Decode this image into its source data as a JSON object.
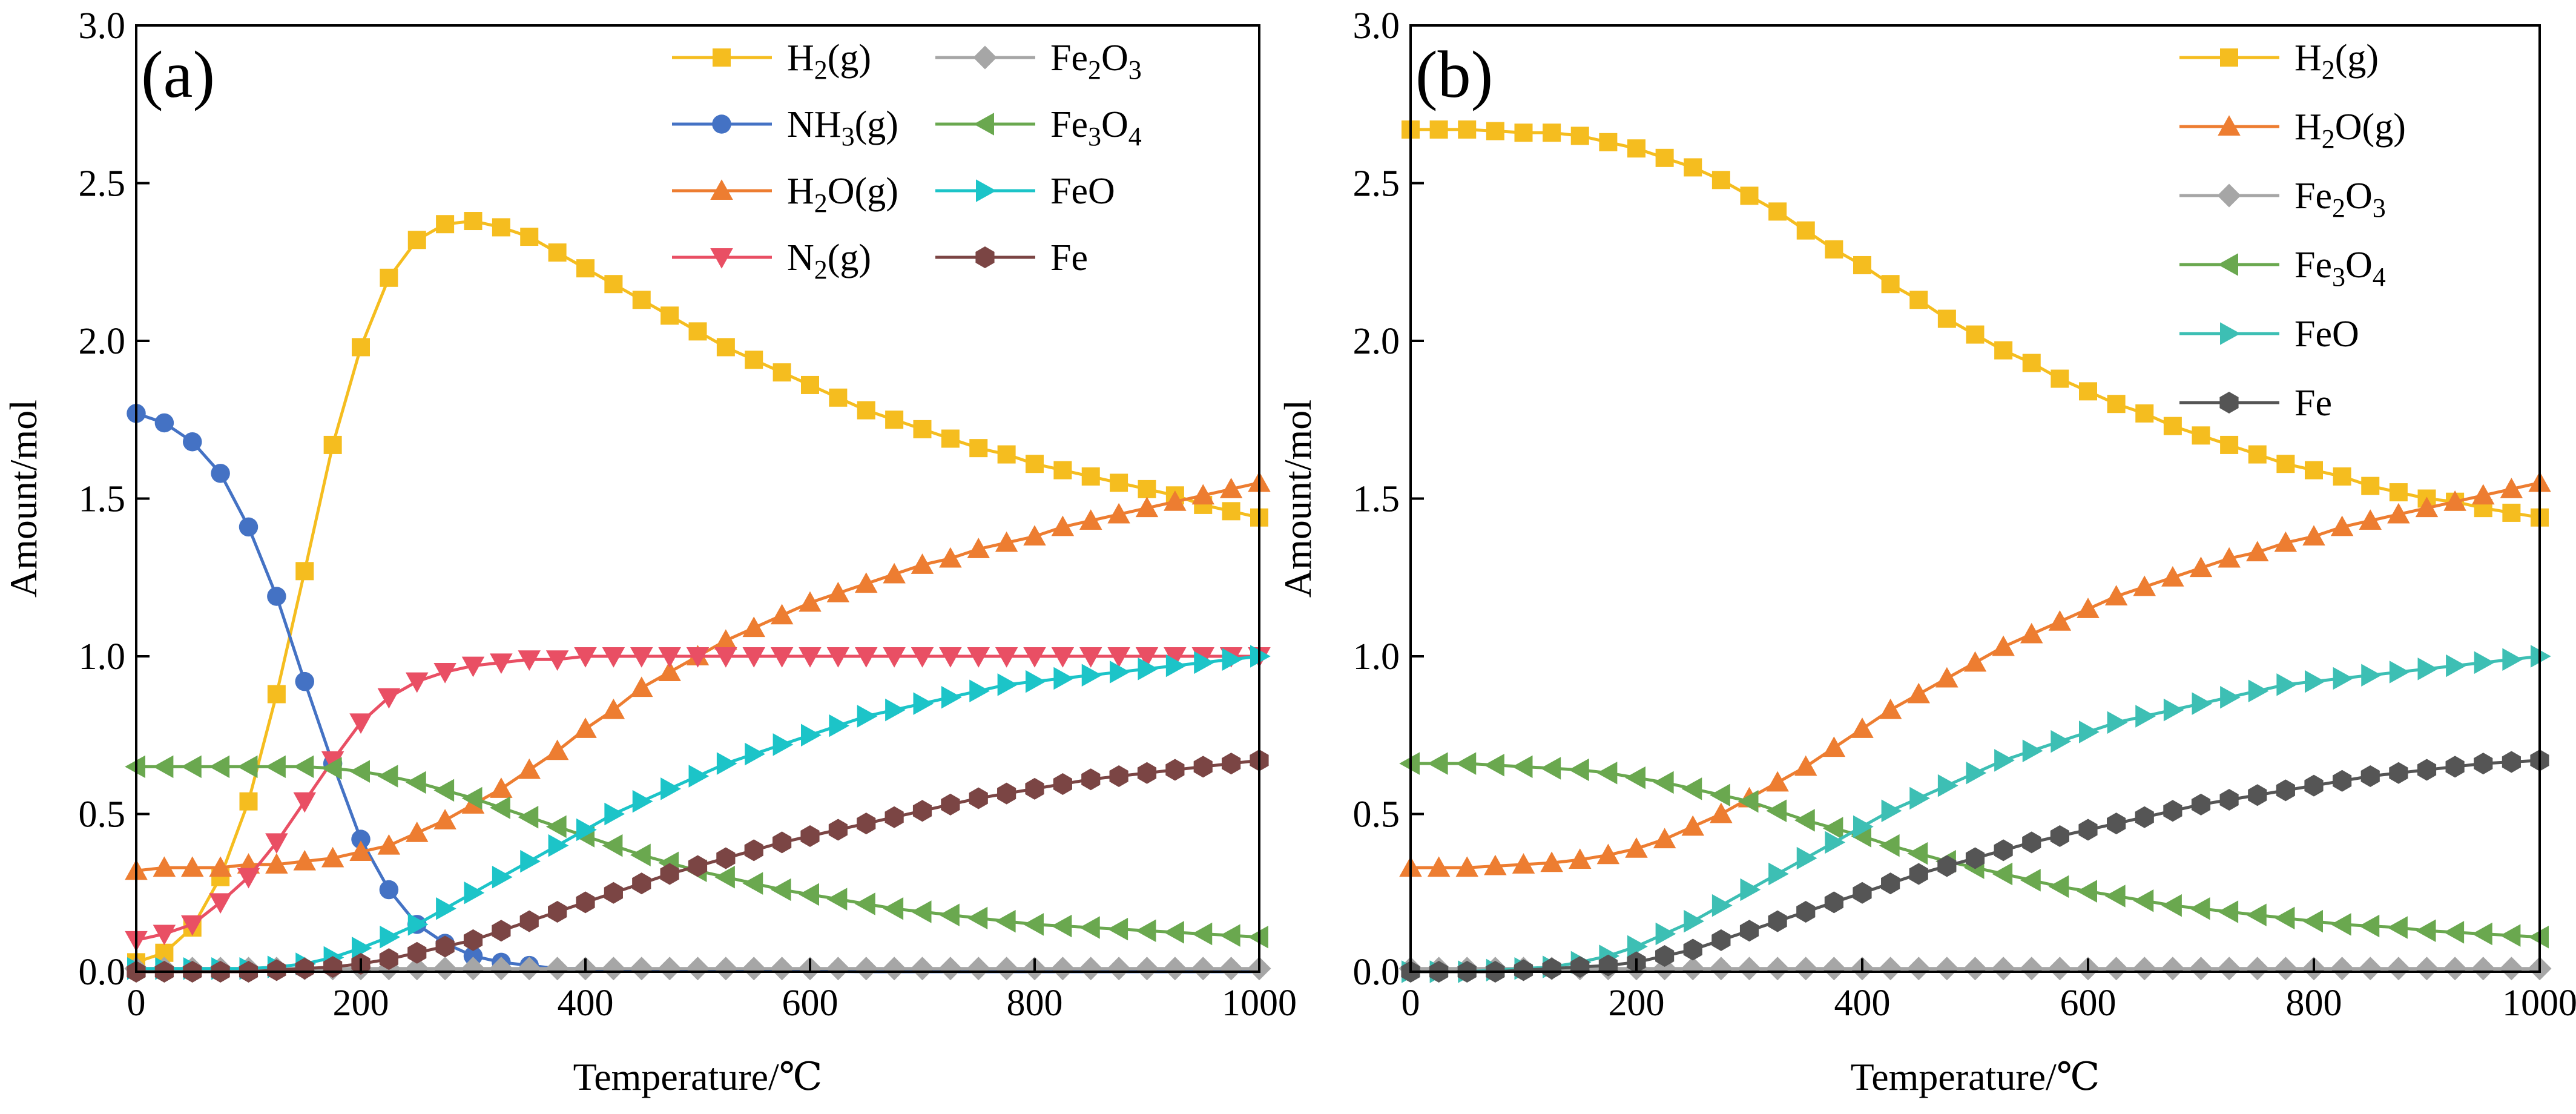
{
  "chart_data": [
    {
      "type": "line",
      "panel_label": "(a)",
      "xlabel": "Temperature/℃",
      "ylabel": "Amount/mol",
      "xlim": [
        0,
        1000
      ],
      "ylim": [
        0,
        3.0
      ],
      "xticks": [
        "0",
        "200",
        "400",
        "600",
        "800",
        "1000"
      ],
      "yticks": [
        "0.0",
        "0.5",
        "1.0",
        "1.5",
        "2.0",
        "2.5",
        "3.0"
      ],
      "grid": false,
      "legend_position": "top-right",
      "legend_columns": 2,
      "x": [
        0,
        25,
        50,
        75,
        100,
        125,
        150,
        175,
        200,
        225,
        250,
        275,
        300,
        325,
        350,
        375,
        400,
        425,
        450,
        475,
        500,
        525,
        550,
        575,
        600,
        625,
        650,
        675,
        700,
        725,
        750,
        775,
        800,
        825,
        850,
        875,
        900,
        925,
        950,
        975,
        1000
      ],
      "series": [
        {
          "name": "H2(g)",
          "legend_main": "H",
          "legend_sub": "2",
          "legend_tail": "(g)",
          "color": "#F5BD1F",
          "marker": "square",
          "values": [
            0.03,
            0.06,
            0.14,
            0.3,
            0.54,
            0.88,
            1.27,
            1.67,
            1.98,
            2.2,
            2.32,
            2.37,
            2.38,
            2.36,
            2.33,
            2.28,
            2.23,
            2.18,
            2.13,
            2.08,
            2.03,
            1.98,
            1.94,
            1.9,
            1.86,
            1.82,
            1.78,
            1.75,
            1.72,
            1.69,
            1.66,
            1.64,
            1.61,
            1.59,
            1.57,
            1.55,
            1.53,
            1.51,
            1.48,
            1.46,
            1.44
          ]
        },
        {
          "name": "NH3(g)",
          "legend_main": "NH",
          "legend_sub": "3",
          "legend_tail": "(g)",
          "color": "#4472C4",
          "marker": "circle",
          "marker_range": [
            0,
            14
          ],
          "values": [
            1.77,
            1.74,
            1.68,
            1.58,
            1.41,
            1.19,
            0.92,
            0.66,
            0.42,
            0.26,
            0.15,
            0.09,
            0.05,
            0.03,
            0.02,
            0.01,
            0.01,
            0.005,
            0.004,
            0.003,
            0.002,
            0.002,
            0.001,
            0.001,
            0.001,
            0.001,
            0,
            0,
            0,
            0,
            0,
            0,
            0,
            0,
            0,
            0,
            0,
            0,
            0,
            0,
            0
          ]
        },
        {
          "name": "H2O(g)",
          "legend_main": "H",
          "legend_sub": "2",
          "legend_tail": "O(g)",
          "color": "#ED7D31",
          "marker": "triangle-up",
          "values": [
            0.32,
            0.33,
            0.33,
            0.33,
            0.34,
            0.34,
            0.35,
            0.36,
            0.38,
            0.4,
            0.44,
            0.48,
            0.53,
            0.58,
            0.64,
            0.7,
            0.77,
            0.83,
            0.9,
            0.95,
            1.0,
            1.05,
            1.09,
            1.13,
            1.17,
            1.2,
            1.23,
            1.26,
            1.29,
            1.31,
            1.34,
            1.36,
            1.38,
            1.41,
            1.43,
            1.45,
            1.47,
            1.49,
            1.51,
            1.53,
            1.55
          ]
        },
        {
          "name": "N2(g)",
          "legend_main": "N",
          "legend_sub": "2",
          "legend_tail": "(g)",
          "color": "#E94F64",
          "marker": "triangle-down",
          "values": [
            0.1,
            0.12,
            0.15,
            0.22,
            0.3,
            0.41,
            0.54,
            0.67,
            0.79,
            0.87,
            0.92,
            0.95,
            0.97,
            0.98,
            0.99,
            0.99,
            1.0,
            1.0,
            1.0,
            1.0,
            1.0,
            1.0,
            1.0,
            1.0,
            1.0,
            1.0,
            1.0,
            1.0,
            1.0,
            1.0,
            1.0,
            1.0,
            1.0,
            1.0,
            1.0,
            1.0,
            1.0,
            1.0,
            1.0,
            1.0,
            1.0
          ]
        },
        {
          "name": "Fe2O3",
          "legend_main": "Fe",
          "legend_sub": "2",
          "legend_tail": "O",
          "legend_sub2": "3",
          "color": "#A6A6A6",
          "marker": "diamond",
          "values": [
            0.01,
            0.01,
            0.01,
            0.01,
            0.01,
            0.01,
            0.01,
            0.01,
            0.01,
            0.01,
            0.01,
            0.01,
            0.01,
            0.01,
            0.01,
            0.01,
            0.01,
            0.01,
            0.01,
            0.01,
            0.01,
            0.01,
            0.01,
            0.01,
            0.01,
            0.01,
            0.01,
            0.01,
            0.01,
            0.01,
            0.01,
            0.01,
            0.01,
            0.01,
            0.01,
            0.01,
            0.01,
            0.01,
            0.01,
            0.01,
            0.01
          ]
        },
        {
          "name": "Fe3O4",
          "legend_main": "Fe",
          "legend_sub": "3",
          "legend_tail": "O",
          "legend_sub2": "4",
          "color": "#6AA84F",
          "marker": "triangle-left",
          "values": [
            0.65,
            0.65,
            0.65,
            0.65,
            0.65,
            0.65,
            0.65,
            0.645,
            0.635,
            0.62,
            0.6,
            0.575,
            0.55,
            0.52,
            0.49,
            0.46,
            0.43,
            0.4,
            0.37,
            0.345,
            0.32,
            0.3,
            0.28,
            0.26,
            0.245,
            0.23,
            0.215,
            0.2,
            0.19,
            0.18,
            0.17,
            0.16,
            0.15,
            0.145,
            0.14,
            0.135,
            0.13,
            0.125,
            0.12,
            0.115,
            0.11
          ]
        },
        {
          "name": "FeO",
          "legend_main": "FeO",
          "color": "#1CC4C8",
          "marker": "triangle-right",
          "values": [
            0.01,
            0.01,
            0.01,
            0.01,
            0.01,
            0.015,
            0.025,
            0.045,
            0.075,
            0.11,
            0.15,
            0.2,
            0.25,
            0.3,
            0.35,
            0.4,
            0.45,
            0.5,
            0.54,
            0.58,
            0.62,
            0.66,
            0.69,
            0.72,
            0.75,
            0.78,
            0.81,
            0.83,
            0.85,
            0.87,
            0.89,
            0.91,
            0.92,
            0.93,
            0.94,
            0.95,
            0.96,
            0.97,
            0.98,
            0.99,
            1.0
          ]
        },
        {
          "name": "Fe",
          "legend_main": "Fe",
          "color": "#7B4544",
          "marker": "hexagon",
          "values": [
            0.0,
            0.0,
            0.0,
            0.0,
            0.0,
            0.005,
            0.01,
            0.015,
            0.025,
            0.04,
            0.06,
            0.08,
            0.1,
            0.13,
            0.16,
            0.19,
            0.22,
            0.25,
            0.28,
            0.31,
            0.335,
            0.36,
            0.385,
            0.41,
            0.43,
            0.45,
            0.47,
            0.49,
            0.51,
            0.53,
            0.55,
            0.565,
            0.58,
            0.595,
            0.61,
            0.62,
            0.63,
            0.64,
            0.65,
            0.66,
            0.67
          ]
        }
      ]
    },
    {
      "type": "line",
      "panel_label": "(b)",
      "xlabel": "Temperature/℃",
      "ylabel": "Amount/mol",
      "xlim": [
        0,
        1000
      ],
      "ylim": [
        0,
        3.0
      ],
      "xticks": [
        "0",
        "200",
        "400",
        "600",
        "800",
        "1000"
      ],
      "yticks": [
        "0.0",
        "0.5",
        "1.0",
        "1.5",
        "2.0",
        "2.5",
        "3.0"
      ],
      "grid": false,
      "legend_position": "top-right",
      "legend_columns": 1,
      "x": [
        0,
        25,
        50,
        75,
        100,
        125,
        150,
        175,
        200,
        225,
        250,
        275,
        300,
        325,
        350,
        375,
        400,
        425,
        450,
        475,
        500,
        525,
        550,
        575,
        600,
        625,
        650,
        675,
        700,
        725,
        750,
        775,
        800,
        825,
        850,
        875,
        900,
        925,
        950,
        975,
        1000
      ],
      "series": [
        {
          "name": "H2(g)",
          "legend_main": "H",
          "legend_sub": "2",
          "legend_tail": "(g)",
          "color": "#F5BD1F",
          "marker": "square",
          "values": [
            2.67,
            2.67,
            2.67,
            2.665,
            2.66,
            2.66,
            2.65,
            2.63,
            2.61,
            2.58,
            2.55,
            2.51,
            2.46,
            2.41,
            2.35,
            2.29,
            2.24,
            2.18,
            2.13,
            2.07,
            2.02,
            1.97,
            1.93,
            1.88,
            1.84,
            1.8,
            1.77,
            1.73,
            1.7,
            1.67,
            1.64,
            1.61,
            1.59,
            1.57,
            1.54,
            1.52,
            1.5,
            1.49,
            1.47,
            1.455,
            1.44
          ]
        },
        {
          "name": "H2O(g)",
          "legend_main": "H",
          "legend_sub": "2",
          "legend_tail": "O(g)",
          "color": "#ED7D31",
          "marker": "triangle-up",
          "values": [
            0.33,
            0.33,
            0.33,
            0.335,
            0.34,
            0.345,
            0.355,
            0.37,
            0.39,
            0.42,
            0.46,
            0.5,
            0.55,
            0.6,
            0.65,
            0.71,
            0.77,
            0.83,
            0.88,
            0.93,
            0.98,
            1.03,
            1.07,
            1.11,
            1.15,
            1.19,
            1.22,
            1.25,
            1.28,
            1.31,
            1.33,
            1.36,
            1.38,
            1.41,
            1.43,
            1.45,
            1.47,
            1.49,
            1.51,
            1.53,
            1.55
          ]
        },
        {
          "name": "Fe2O3",
          "legend_main": "Fe",
          "legend_sub": "2",
          "legend_tail": "O",
          "legend_sub2": "3",
          "color": "#A6A6A6",
          "marker": "diamond",
          "values": [
            0.01,
            0.01,
            0.01,
            0.01,
            0.01,
            0.01,
            0.01,
            0.01,
            0.01,
            0.01,
            0.01,
            0.01,
            0.01,
            0.01,
            0.01,
            0.01,
            0.01,
            0.01,
            0.01,
            0.01,
            0.01,
            0.01,
            0.01,
            0.01,
            0.01,
            0.01,
            0.01,
            0.01,
            0.01,
            0.01,
            0.01,
            0.01,
            0.01,
            0.01,
            0.01,
            0.01,
            0.01,
            0.01,
            0.01,
            0.01,
            0.01
          ]
        },
        {
          "name": "Fe3O4",
          "legend_main": "Fe",
          "legend_sub": "3",
          "legend_tail": "O",
          "legend_sub2": "4",
          "color": "#6AA84F",
          "marker": "triangle-left",
          "values": [
            0.66,
            0.66,
            0.66,
            0.655,
            0.65,
            0.645,
            0.64,
            0.63,
            0.615,
            0.6,
            0.58,
            0.56,
            0.54,
            0.51,
            0.48,
            0.455,
            0.43,
            0.4,
            0.375,
            0.35,
            0.33,
            0.31,
            0.29,
            0.27,
            0.255,
            0.24,
            0.225,
            0.21,
            0.2,
            0.19,
            0.18,
            0.17,
            0.16,
            0.15,
            0.145,
            0.14,
            0.13,
            0.125,
            0.12,
            0.115,
            0.11
          ]
        },
        {
          "name": "FeO",
          "legend_main": "FeO",
          "color": "#3DBFB4",
          "marker": "triangle-right",
          "values": [
            0.0,
            0.0,
            0.0,
            0.005,
            0.01,
            0.015,
            0.03,
            0.05,
            0.08,
            0.12,
            0.16,
            0.21,
            0.26,
            0.31,
            0.36,
            0.41,
            0.46,
            0.51,
            0.55,
            0.59,
            0.63,
            0.67,
            0.7,
            0.73,
            0.76,
            0.79,
            0.81,
            0.83,
            0.85,
            0.87,
            0.89,
            0.91,
            0.92,
            0.93,
            0.94,
            0.95,
            0.96,
            0.97,
            0.98,
            0.99,
            1.0
          ]
        },
        {
          "name": "Fe",
          "legend_main": "Fe",
          "color": "#555555",
          "marker": "hexagon",
          "values": [
            0.0,
            0.0,
            0.0,
            0.0,
            0.005,
            0.01,
            0.015,
            0.02,
            0.03,
            0.05,
            0.07,
            0.1,
            0.13,
            0.16,
            0.19,
            0.22,
            0.25,
            0.28,
            0.31,
            0.335,
            0.36,
            0.385,
            0.41,
            0.43,
            0.45,
            0.47,
            0.49,
            0.51,
            0.53,
            0.545,
            0.56,
            0.575,
            0.59,
            0.605,
            0.62,
            0.63,
            0.64,
            0.65,
            0.66,
            0.665,
            0.67
          ]
        }
      ]
    }
  ]
}
